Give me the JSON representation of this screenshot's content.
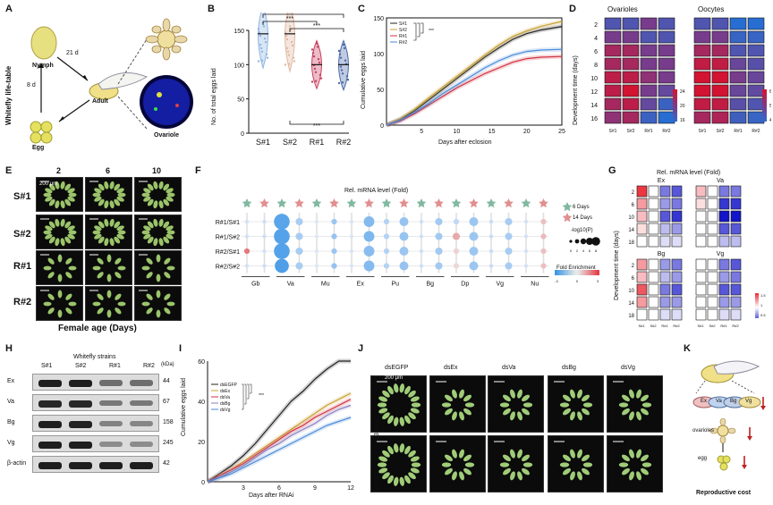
{
  "panels": {
    "A": {
      "label": "A",
      "ylabel": "Whitefly life-table",
      "nymph": "Nymph",
      "adult": "Adult",
      "egg": "Egg",
      "ovariole": "Ovariole",
      "d21": "21 d",
      "d8": "8 d"
    },
    "B": {
      "label": "B",
      "ylabel": "No. of total eggs laid",
      "sig": "***"
    },
    "C": {
      "label": "C",
      "ylabel": "Cumulative eggs laid",
      "xlabel": "Days after eclosion",
      "sig": "***"
    },
    "D": {
      "label": "D",
      "title_left": "Ovarioles",
      "title_right": "Oocytes",
      "ylabel": "Development time (days)"
    },
    "E": {
      "label": "E",
      "xlabel": "Female age (Days)",
      "ages": [
        "2",
        "6",
        "10"
      ],
      "scale": "200 μm"
    },
    "F": {
      "label": "F",
      "title": "Rel. mRNA level (Fold)",
      "legend_6": "6 Days",
      "legend_14": "14 Days",
      "size_title": "-log10(P)",
      "size_ticks": [
        "0",
        "2",
        "4",
        "6",
        "8"
      ],
      "fold_title": "Fold Enrichment",
      "fold_ticks": [
        "-3",
        "0",
        "3"
      ],
      "rows": [
        "R#1/S#1",
        "R#1/S#2",
        "R#2/S#1",
        "R#2/S#2"
      ],
      "genes": [
        "Gb",
        "Va",
        "Mu",
        "Ex",
        "Pu",
        "Bg",
        "Dp",
        "Vg",
        "Nu"
      ]
    },
    "G": {
      "label": "G",
      "title": "Rel. mRNA level (Fold)",
      "ylabel": "Development time (days)",
      "genes_top": [
        "Ex",
        "Va"
      ],
      "genes_bottom": [
        "Bg",
        "Vg"
      ],
      "days": [
        "2",
        "6",
        "10",
        "14",
        "18"
      ],
      "scale_ticks": [
        "1.5",
        "1",
        "0.5"
      ]
    },
    "H": {
      "label": "H",
      "title": "Whitefly strains",
      "kda": "(kDa)",
      "proteins": [
        {
          "name": "Ex",
          "kda": "44"
        },
        {
          "name": "Va",
          "kda": "67"
        },
        {
          "name": "Bg",
          "kda": "158"
        },
        {
          "name": "Vg",
          "kda": "245"
        },
        {
          "name": "β-actin",
          "kda": "42"
        }
      ]
    },
    "I": {
      "label": "I",
      "ylabel": "Cumulative eggs laid",
      "xlabel": "Days after RNAi",
      "sig": "***"
    },
    "J": {
      "label": "J",
      "treatments": [
        "dsEGFP",
        "dsEx",
        "dsVa",
        "dsBg",
        "dsVg"
      ],
      "rows": [
        "3 Days",
        "8 Days"
      ],
      "scale": "200 μm"
    },
    "K": {
      "label": "K",
      "genes": [
        "Ex",
        "Va",
        "Bg",
        "Vg"
      ],
      "ovarioles": "ovarioles",
      "egg": "egg",
      "cost": "Reproductive cost"
    }
  },
  "strains": [
    "S#1",
    "S#2",
    "R#1",
    "R#2"
  ],
  "colors": {
    "S1": "#8fb4e0",
    "S2": "#e0b8a0",
    "R1": "#c94060",
    "R2": "#4a6aa8",
    "black": "#222222",
    "gold": "#c8a030",
    "blue": "#4a8ad8",
    "red": "#d03040"
  },
  "chart_data": [
    {
      "id": "B",
      "type": "scatter",
      "categories": [
        "S#1",
        "S#2",
        "R#1",
        "R#2"
      ],
      "ylim": [
        0,
        150
      ],
      "yticks": [
        0,
        50,
        100,
        150
      ],
      "medians": [
        145,
        145,
        100,
        100
      ],
      "q1": [
        120,
        115,
        90,
        88
      ],
      "q3": [
        160,
        162,
        110,
        110
      ],
      "ylabel": "No. of total eggs laid"
    },
    {
      "id": "C",
      "type": "line",
      "xlim": [
        0,
        25
      ],
      "ylim": [
        0,
        150
      ],
      "xticks": [
        5,
        10,
        15,
        20,
        25
      ],
      "yticks": [
        0,
        50,
        100,
        150
      ],
      "legend": [
        "S#1",
        "S#2",
        "R#1",
        "R#2"
      ],
      "series": [
        {
          "name": "S#1",
          "x": [
            0,
            2,
            4,
            6,
            8,
            10,
            12,
            14,
            16,
            18,
            20,
            22,
            25
          ],
          "y": [
            0,
            8,
            20,
            35,
            50,
            65,
            80,
            95,
            108,
            120,
            128,
            133,
            138
          ]
        },
        {
          "name": "S#2",
          "x": [
            0,
            2,
            4,
            6,
            8,
            10,
            12,
            14,
            16,
            18,
            20,
            22,
            25
          ],
          "y": [
            0,
            9,
            22,
            38,
            53,
            68,
            83,
            98,
            112,
            124,
            132,
            138,
            145
          ]
        },
        {
          "name": "R#1",
          "x": [
            0,
            2,
            4,
            6,
            8,
            10,
            12,
            14,
            16,
            18,
            20,
            22,
            25
          ],
          "y": [
            0,
            6,
            16,
            28,
            40,
            52,
            62,
            72,
            80,
            88,
            93,
            95,
            96
          ]
        },
        {
          "name": "R#2",
          "x": [
            0,
            2,
            4,
            6,
            8,
            10,
            12,
            14,
            16,
            18,
            20,
            22,
            25
          ],
          "y": [
            0,
            7,
            18,
            30,
            44,
            56,
            68,
            80,
            90,
            98,
            103,
            105,
            106
          ]
        }
      ],
      "xlabel": "Days after eclosion",
      "ylabel": "Cumulative eggs laid"
    },
    {
      "id": "D",
      "type": "heatmap",
      "columns": [
        "S#1",
        "S#2",
        "R#1",
        "R#2"
      ],
      "rows": [
        "2",
        "4",
        "6",
        "8",
        "10",
        "12",
        "14",
        "16"
      ],
      "ovarioles": [
        [
          18,
          18,
          20,
          18
        ],
        [
          20,
          20,
          18,
          18
        ],
        [
          22,
          22,
          20,
          20
        ],
        [
          22,
          22,
          20,
          20
        ],
        [
          23,
          23,
          21,
          20
        ],
        [
          23,
          24,
          20,
          19
        ],
        [
          22,
          23,
          19,
          17
        ],
        [
          21,
          22,
          17,
          16
        ]
      ],
      "oocytes": [
        [
          45,
          45,
          40,
          40
        ],
        [
          50,
          50,
          42,
          42
        ],
        [
          55,
          55,
          45,
          45
        ],
        [
          58,
          58,
          48,
          46
        ],
        [
          60,
          60,
          50,
          48
        ],
        [
          60,
          60,
          48,
          47
        ],
        [
          58,
          58,
          46,
          45
        ],
        [
          55,
          56,
          43,
          42
        ]
      ],
      "ov_scale": [
        16,
        24
      ],
      "oc_scale": [
        40,
        60
      ],
      "ov_ticks": [
        "24",
        "20",
        "16"
      ],
      "oc_ticks": [
        "60",
        "50",
        "40"
      ]
    },
    {
      "id": "F",
      "type": "scatter",
      "rows": [
        "R#1/S#1",
        "R#1/S#2",
        "R#2/S#1",
        "R#2/S#2"
      ],
      "values": [
        [
          -0.5,
          -0.6,
          -2.5,
          -1.2,
          -0.3,
          -1.4,
          -0.4,
          -1.8,
          -1.0,
          -1.5,
          -0.6,
          -1.3,
          -0.8,
          -1.4,
          -0.7,
          -1.2,
          -0.5,
          0.8
        ],
        [
          -0.5,
          -0.6,
          -2.6,
          -1.2,
          -0.3,
          -1.5,
          -0.4,
          -1.9,
          -1.0,
          -1.5,
          -0.6,
          -1.3,
          1.2,
          -1.4,
          -0.7,
          -1.2,
          -0.5,
          0.9
        ],
        [
          2.0,
          -0.5,
          -2.6,
          -1.2,
          -0.3,
          -1.4,
          -0.4,
          -1.7,
          -1.0,
          -1.4,
          -0.6,
          -1.3,
          0.5,
          -1.4,
          -0.7,
          -1.2,
          -0.5,
          0.8
        ],
        [
          -0.5,
          -0.6,
          -2.7,
          -1.2,
          -0.3,
          -1.5,
          -0.4,
          -1.8,
          -1.0,
          -1.5,
          -0.6,
          -1.3,
          0.4,
          -1.4,
          -0.7,
          -1.2,
          -0.5,
          0.8
        ]
      ],
      "sizes": [
        [
          1,
          1,
          8,
          3,
          1,
          2,
          1,
          5,
          2,
          4,
          1,
          3,
          2,
          4,
          1,
          3,
          1,
          2
        ],
        [
          1,
          1,
          8,
          3,
          1,
          2,
          1,
          5,
          2,
          4,
          1,
          3,
          3,
          4,
          1,
          3,
          1,
          2
        ],
        [
          2,
          1,
          8,
          3,
          1,
          2,
          1,
          5,
          2,
          4,
          1,
          3,
          2,
          4,
          1,
          3,
          1,
          2
        ],
        [
          1,
          1,
          7,
          3,
          1,
          2,
          1,
          5,
          2,
          4,
          1,
          3,
          2,
          4,
          1,
          3,
          1,
          2
        ]
      ]
    },
    {
      "id": "G",
      "type": "heatmap",
      "columns": [
        "S#1",
        "S#2",
        "R#1",
        "R#2"
      ],
      "rows": [
        "2",
        "6",
        "10",
        "14",
        "18"
      ],
      "Ex": [
        [
          1.6,
          1.0,
          0.6,
          0.5
        ],
        [
          1.3,
          1.0,
          0.7,
          0.6
        ],
        [
          1.2,
          1.0,
          0.5,
          0.4
        ],
        [
          1.1,
          1.0,
          0.8,
          0.7
        ],
        [
          1.0,
          1.0,
          0.9,
          0.9
        ]
      ],
      "Va": [
        [
          1.2,
          1.0,
          0.6,
          0.6
        ],
        [
          1.1,
          1.0,
          0.4,
          0.4
        ],
        [
          1.0,
          1.0,
          0.3,
          0.3
        ],
        [
          1.0,
          1.0,
          0.5,
          0.5
        ],
        [
          1.0,
          1.0,
          0.8,
          0.8
        ]
      ],
      "Bg": [
        [
          1.3,
          1.0,
          0.7,
          0.6
        ],
        [
          1.2,
          1.0,
          0.8,
          0.7
        ],
        [
          1.5,
          1.0,
          0.6,
          0.5
        ],
        [
          1.3,
          1.0,
          0.7,
          0.7
        ],
        [
          1.0,
          1.0,
          0.9,
          0.9
        ]
      ],
      "Vg": [
        [
          1.0,
          1.0,
          0.6,
          0.5
        ],
        [
          1.0,
          1.0,
          0.7,
          0.6
        ],
        [
          1.0,
          1.0,
          0.5,
          0.5
        ],
        [
          1.0,
          1.0,
          0.7,
          0.7
        ],
        [
          1.0,
          1.0,
          0.9,
          0.9
        ]
      ],
      "ticks": [
        "1.5",
        "1",
        "0.5"
      ]
    },
    {
      "id": "I",
      "type": "line",
      "xlim": [
        0,
        12
      ],
      "ylim": [
        0,
        60
      ],
      "xticks": [
        3,
        6,
        9,
        12
      ],
      "yticks": [
        0,
        20,
        40,
        60
      ],
      "legend": [
        "dsEGFP",
        "dsEx",
        "dsVa",
        "dsBg",
        "dsVg"
      ],
      "series": [
        {
          "name": "dsEGFP",
          "x": [
            0,
            1,
            2,
            3,
            4,
            5,
            6,
            7,
            8,
            9,
            10,
            11,
            12
          ],
          "y": [
            0,
            4,
            8,
            13,
            19,
            26,
            33,
            40,
            45,
            51,
            56,
            61,
            65
          ]
        },
        {
          "name": "dsEx",
          "x": [
            0,
            1,
            2,
            3,
            4,
            5,
            6,
            7,
            8,
            9,
            10,
            11,
            12
          ],
          "y": [
            0,
            3,
            6,
            10,
            14,
            18,
            22,
            26,
            30,
            34,
            38,
            41,
            44
          ]
        },
        {
          "name": "dsVa",
          "x": [
            0,
            1,
            2,
            3,
            4,
            5,
            6,
            7,
            8,
            9,
            10,
            11,
            12
          ],
          "y": [
            0,
            3,
            6,
            9,
            13,
            17,
            21,
            25,
            28,
            32,
            35,
            38,
            41
          ]
        },
        {
          "name": "dsBg",
          "x": [
            0,
            1,
            2,
            3,
            4,
            5,
            6,
            7,
            8,
            9,
            10,
            11,
            12
          ],
          "y": [
            0,
            2,
            5,
            8,
            12,
            16,
            19,
            23,
            26,
            29,
            33,
            36,
            38
          ]
        },
        {
          "name": "dsVg",
          "x": [
            0,
            1,
            2,
            3,
            4,
            5,
            6,
            7,
            8,
            9,
            10,
            11,
            12
          ],
          "y": [
            0,
            2,
            4,
            7,
            10,
            13,
            16,
            19,
            22,
            25,
            28,
            30,
            32
          ]
        }
      ],
      "xlabel": "Days after RNAi",
      "ylabel": "Cumulative eggs laid"
    }
  ]
}
